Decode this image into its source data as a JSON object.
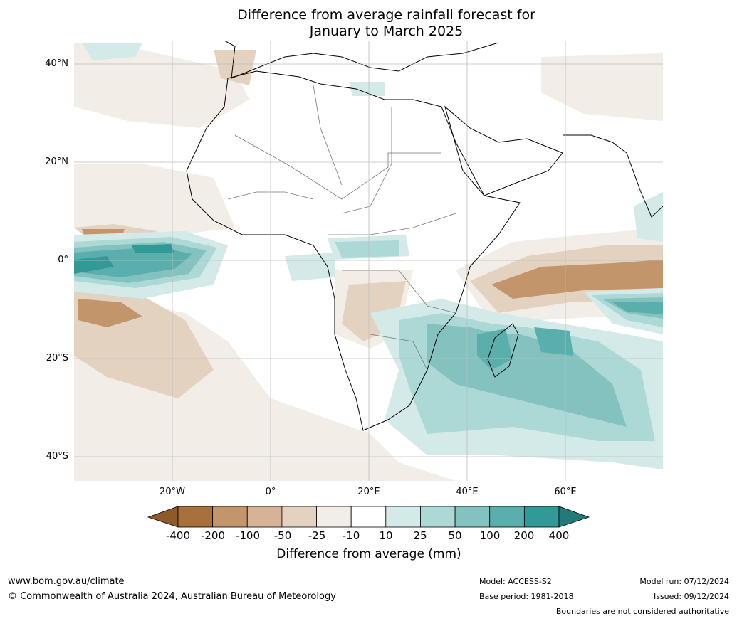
{
  "title_line1": "Difference from average rainfall forecast for",
  "title_line2": "January to March 2025",
  "lat_ticks": [
    "40°N",
    "20°N",
    "0°",
    "20°S",
    "40°S"
  ],
  "lon_ticks": [
    "20°W",
    "0°",
    "20°E",
    "40°E",
    "60°E"
  ],
  "colorbar": {
    "title": "Difference from average (mm)",
    "labels": [
      "-400",
      "-200",
      "-100",
      "-50",
      "-25",
      "-10",
      "10",
      "25",
      "50",
      "100",
      "200",
      "400"
    ],
    "colors": [
      "#a8703a",
      "#c2956a",
      "#d6b396",
      "#e4d2c0",
      "#f2ede7",
      "#ffffff",
      "#d4eae9",
      "#acd8d6",
      "#84c2c0",
      "#5aaeab",
      "#319a97"
    ],
    "extend_low": "#8f5a2a",
    "extend_high": "#217b78"
  },
  "footer": {
    "website": "www.bom.gov.au/climate",
    "copyright": "© Commonwealth of Australia 2024, Australian Bureau of Meteorology",
    "model": "Model: ACCESS-S2",
    "base_period": "Base period: 1981-2018",
    "model_run": "Model run: 07/12/2024",
    "issued": "Issued: 09/12/2024",
    "boundaries": "Boundaries are not considered authoritative"
  }
}
